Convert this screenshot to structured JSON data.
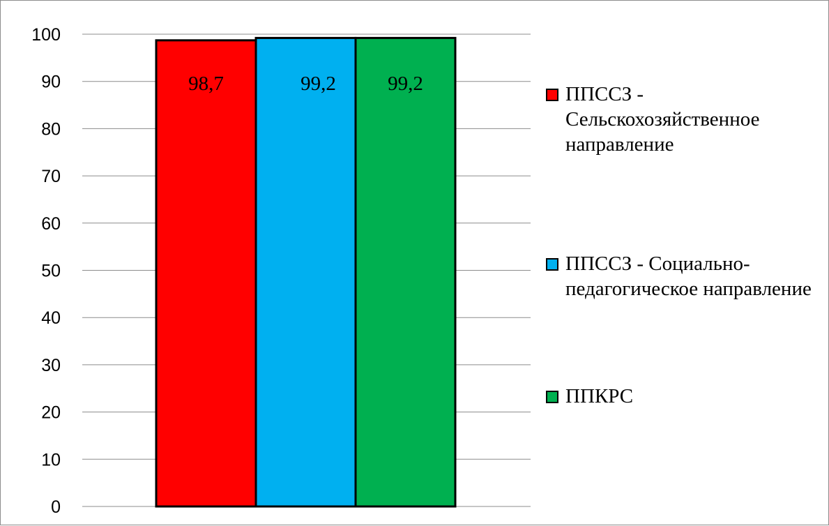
{
  "chart_data": {
    "type": "bar",
    "title": "",
    "xlabel": "",
    "ylabel": "",
    "ylim": [
      0,
      100
    ],
    "yticks": [
      0,
      10,
      20,
      30,
      40,
      50,
      60,
      70,
      80,
      90,
      100
    ],
    "grid": true,
    "legend_position": "right",
    "series": [
      {
        "name": "ППССЗ - Сельскохозяйственное направление",
        "value": 98.7,
        "label": "98,7",
        "color": "#ff0000"
      },
      {
        "name": "ППССЗ - Социально-педагогическое направление",
        "value": 99.2,
        "label": "99,2",
        "color": "#00b0f0"
      },
      {
        "name": "ППКРС",
        "value": 99.2,
        "label": "99,2",
        "color": "#00b050"
      }
    ]
  },
  "legend": {
    "items": [
      {
        "text": "ППССЗ - Сельскохозяйственное направление"
      },
      {
        "text": "ППССЗ - Социально-педагогическое направление"
      },
      {
        "text": "ППКРС"
      }
    ]
  }
}
